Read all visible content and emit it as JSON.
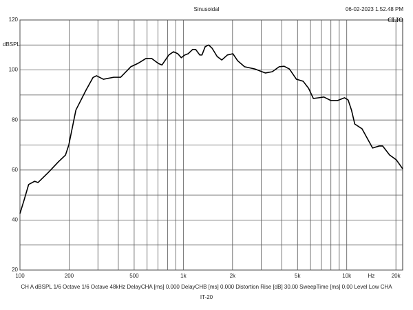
{
  "chart_data": {
    "type": "line",
    "title": "Sinusoidal",
    "timestamp": "06-02-2023 1.52.48 PM",
    "logo": "CLIO",
    "y_label": "dBSPL",
    "x_unit_label": "Hz",
    "footer": "CH A   dBSPL   1/6 Octave   1/6 Octave   48kHz   DelayCHA [ms] 0.000   DelayCHB [ms] 0.000   Distortion Rise [dB] 30.00   SweepTime [ms] 0.00   Level Low CHA",
    "device": "IT-20",
    "x_scale": "log",
    "xlim": [
      100,
      22000
    ],
    "xticks": [
      100,
      200,
      500,
      {
        "value": 1000,
        "label": "1k"
      },
      {
        "value": 2000,
        "label": "2k"
      },
      {
        "value": 5000,
        "label": "5k"
      },
      {
        "value": 10000,
        "label": "10k"
      },
      {
        "value": 20000,
        "label": "20k"
      }
    ],
    "xminor": [
      300,
      400,
      600,
      700,
      800,
      900,
      3000,
      4000,
      6000,
      7000,
      8000,
      9000
    ],
    "ylim": [
      20,
      120
    ],
    "yticks": [
      20,
      40,
      60,
      80,
      100,
      120
    ],
    "yminor": [
      30,
      50,
      70,
      90,
      110
    ],
    "grid": true,
    "series": [
      {
        "name": "CH A",
        "color": "#000000",
        "x": [
          100,
          106,
          113,
          123,
          129,
          149,
          172,
          190,
          199,
          220,
          254,
          280,
          294,
          324,
          375,
          413,
          477,
          526,
          590,
          640,
          703,
          740,
          815,
          870,
          925,
          972,
          1020,
          1070,
          1140,
          1190,
          1260,
          1300,
          1360,
          1430,
          1500,
          1610,
          1720,
          1860,
          2010,
          2150,
          2370,
          2740,
          3180,
          3500,
          3860,
          4140,
          4460,
          4920,
          5410,
          5840,
          6250,
          6760,
          7240,
          7990,
          8800,
          9700,
          10200,
          10700,
          11200,
          12400,
          13300,
          14400,
          15800,
          16600,
          18300,
          20100,
          22000
        ],
        "values": [
          42.6,
          48,
          54.2,
          55.5,
          55,
          59,
          63.3,
          66,
          70,
          84,
          92,
          97,
          97.7,
          96.3,
          97.1,
          97.1,
          101.3,
          102.6,
          104.6,
          104.6,
          102.6,
          102,
          106,
          107.3,
          106.5,
          104.9,
          106,
          106.5,
          108.2,
          108.2,
          106,
          106,
          109.3,
          110,
          108.7,
          105.4,
          104,
          106,
          106.5,
          103.7,
          101.3,
          100.4,
          98.8,
          99.3,
          101.3,
          101.5,
          100.4,
          96.3,
          95.5,
          92.7,
          88.6,
          88.9,
          89.2,
          87.8,
          87.8,
          88.9,
          88,
          83.9,
          78.4,
          76.5,
          72.9,
          68.8,
          69.6,
          69.6,
          66,
          64.1,
          60.5
        ]
      }
    ]
  }
}
